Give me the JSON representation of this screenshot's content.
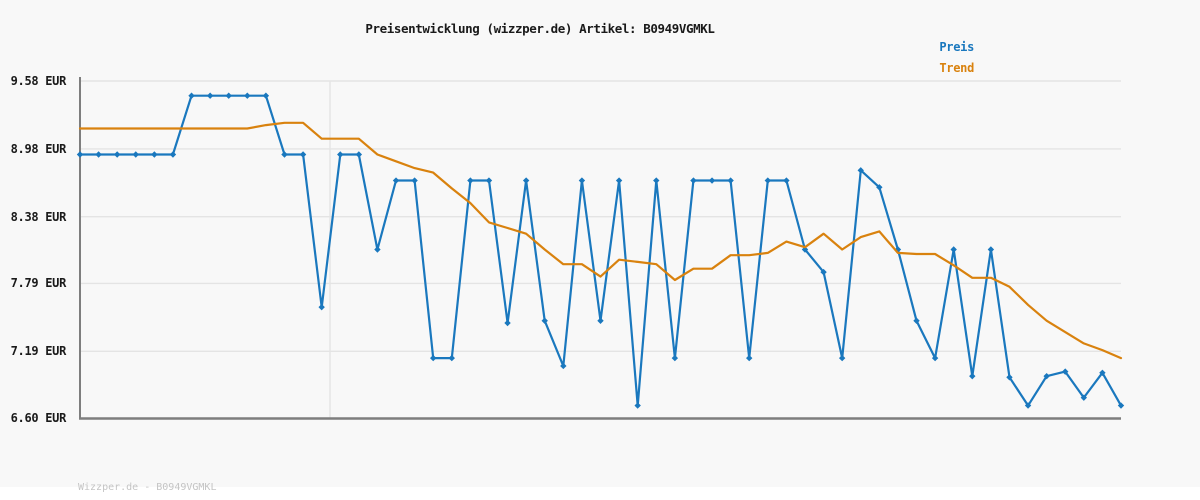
{
  "header": {
    "title": "Preisentwicklung (wizzper.de) Artikel: B0949VGMKL"
  },
  "legend": {
    "position": "top-right",
    "items": [
      {
        "label": "Preis",
        "color": "#1a78be"
      },
      {
        "label": "Trend",
        "color": "#d9820e"
      }
    ]
  },
  "footer": {
    "text": "Wizzper.de - B0949VGMKL"
  },
  "colors": {
    "background": "#f8f8f8",
    "footer_strip": "#ffffff",
    "grid": "#e4e4e4",
    "axis": "#7e7e7e",
    "title_text": "#1a1a1a",
    "tick_text": "#1a1a1a",
    "footer_text": "#c4c4c4",
    "preis_blue": "#1a78be",
    "trend_orange": "#d9820e"
  },
  "chart_data": {
    "type": "line",
    "title": "Preisentwicklung (wizzper.de) Artikel: B0949VGMKL",
    "xlabel": "",
    "ylabel": "",
    "x_description": "time series, 57 evenly spaced samples, no visible x-axis labels",
    "x_labels_visible": false,
    "x_gridline_fraction": 0.2402,
    "ylim": [
      6.6,
      9.58
    ],
    "yticks": [
      {
        "value": 9.58,
        "label": "9.58 EUR"
      },
      {
        "value": 8.98,
        "label": "8.98 EUR"
      },
      {
        "value": 8.38,
        "label": "8.38 EUR"
      },
      {
        "value": 7.79,
        "label": "7.79 EUR"
      },
      {
        "value": 7.19,
        "label": "7.19 EUR"
      },
      {
        "value": 6.6,
        "label": "6.60 EUR"
      }
    ],
    "grid": "horizontal gridlines at each y-tick plus one vertical gridline",
    "legend_position": "top-right, text only",
    "series": [
      {
        "name": "Preis",
        "color": "#1a78be",
        "marker": "diamond",
        "values": [
          8.93,
          8.93,
          8.93,
          8.93,
          8.93,
          8.93,
          9.45,
          9.45,
          9.45,
          9.45,
          9.45,
          8.93,
          8.93,
          7.58,
          8.93,
          8.93,
          8.09,
          8.7,
          8.7,
          7.13,
          7.13,
          8.7,
          8.7,
          7.44,
          8.7,
          7.46,
          7.06,
          8.7,
          7.46,
          8.7,
          6.71,
          8.7,
          7.13,
          8.7,
          8.7,
          8.7,
          7.13,
          8.7,
          8.7,
          8.09,
          7.89,
          7.13,
          8.79,
          8.64,
          8.09,
          7.46,
          7.13,
          8.09,
          6.97,
          8.09,
          6.96,
          6.71,
          6.97,
          7.01,
          6.78,
          7.0,
          6.71
        ]
      },
      {
        "name": "Trend",
        "color": "#d9820e",
        "marker": "none",
        "values": [
          9.16,
          9.16,
          9.16,
          9.16,
          9.16,
          9.16,
          9.16,
          9.16,
          9.16,
          9.16,
          9.19,
          9.21,
          9.21,
          9.07,
          9.07,
          9.07,
          8.93,
          8.87,
          8.81,
          8.77,
          8.63,
          8.5,
          8.33,
          8.28,
          8.23,
          8.09,
          7.96,
          7.96,
          7.85,
          8.0,
          7.98,
          7.96,
          7.82,
          7.92,
          7.92,
          8.04,
          8.04,
          8.06,
          8.16,
          8.11,
          8.23,
          8.09,
          8.2,
          8.25,
          8.06,
          8.05,
          8.05,
          7.95,
          7.84,
          7.84,
          7.76,
          7.6,
          7.46,
          7.36,
          7.26,
          7.2,
          7.13
        ]
      }
    ]
  }
}
